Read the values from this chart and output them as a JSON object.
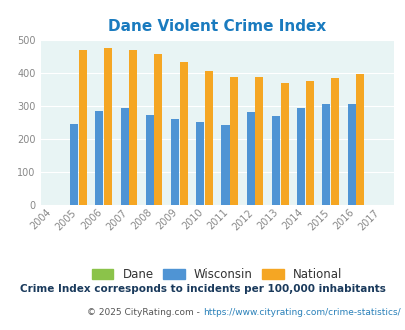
{
  "title": "Dane Violent Crime Index",
  "years": [
    2004,
    2005,
    2006,
    2007,
    2008,
    2009,
    2010,
    2011,
    2012,
    2013,
    2014,
    2015,
    2016,
    2017
  ],
  "dane_values": [
    0,
    0,
    0,
    0,
    0,
    0,
    0,
    0,
    0,
    0,
    0,
    0,
    0,
    0
  ],
  "wisconsin_values": [
    0,
    244,
    284,
    292,
    273,
    260,
    250,
    241,
    281,
    270,
    292,
    305,
    305,
    0
  ],
  "national_values": [
    0,
    469,
    474,
    467,
    455,
    432,
    405,
    388,
    388,
    367,
    376,
    384,
    397,
    0
  ],
  "ylim": [
    0,
    500
  ],
  "yticks": [
    0,
    100,
    200,
    300,
    400,
    500
  ],
  "dane_color": "#8bc34a",
  "wisconsin_color": "#4f94d4",
  "national_color": "#f5a623",
  "plot_bg": "#e8f4f4",
  "legend_labels": [
    "Dane",
    "Wisconsin",
    "National"
  ],
  "footnote1": "Crime Index corresponds to incidents per 100,000 inhabitants",
  "footnote2_text": "© 2025 CityRating.com - ",
  "footnote2_url": "https://www.cityrating.com/crime-statistics/",
  "title_color": "#1a7bbf",
  "footnote1_color": "#1a3a5c",
  "footnote2_color": "#555555",
  "footnote2_url_color": "#2980b9",
  "tick_color": "#888888",
  "grid_color": "#ffffff"
}
